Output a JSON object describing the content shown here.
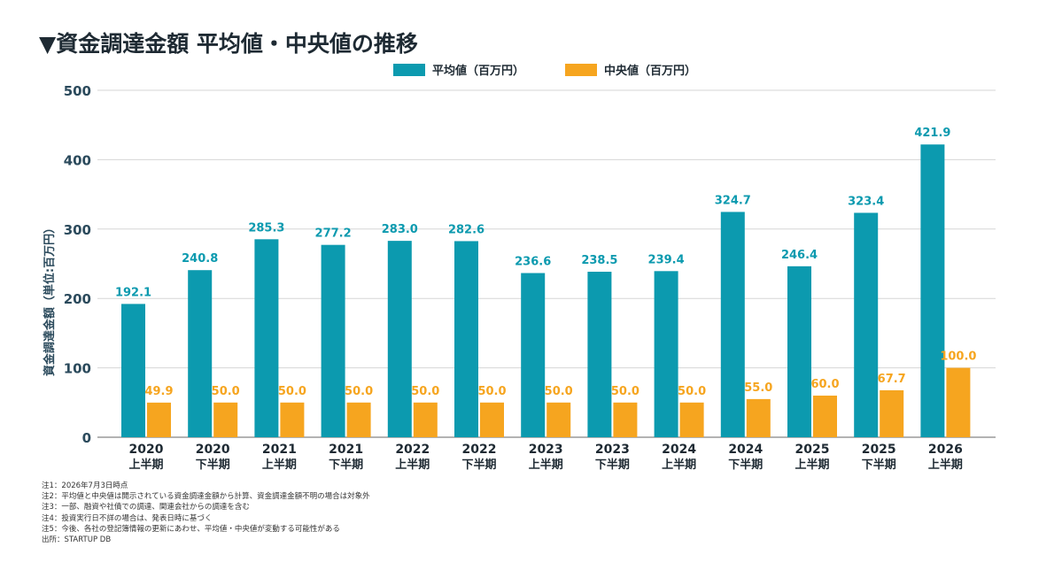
{
  "title": "▼資金調達金額 平均値・中央値の推移",
  "colors": {
    "mean": "#0c9aaf",
    "median": "#f6a51f",
    "axis_text": "#2b4a5c",
    "grid": "#d6d6d6"
  },
  "chart_data": {
    "type": "bar",
    "title": "",
    "ylabel": "資金調達金額（単位:百万円）",
    "ylim": [
      0,
      500
    ],
    "yticks": [
      "0",
      "100",
      "200",
      "300",
      "400",
      "500"
    ],
    "grid": true,
    "legend_position": "top-center",
    "categories": [
      {
        "year": "2020",
        "half": "上半期"
      },
      {
        "year": "2020",
        "half": "下半期"
      },
      {
        "year": "2021",
        "half": "上半期"
      },
      {
        "year": "2021",
        "half": "下半期"
      },
      {
        "year": "2022",
        "half": "上半期"
      },
      {
        "year": "2022",
        "half": "下半期"
      },
      {
        "year": "2023",
        "half": "上半期"
      },
      {
        "year": "2023",
        "half": "下半期"
      },
      {
        "year": "2024",
        "half": "上半期"
      },
      {
        "year": "2024",
        "half": "下半期"
      },
      {
        "year": "2025",
        "half": "上半期"
      },
      {
        "year": "2025",
        "half": "下半期"
      },
      {
        "year": "2026",
        "half": "上半期"
      }
    ],
    "series": [
      {
        "name": "平均値（百万円）",
        "color": "#0c9aaf",
        "values": [
          192.1,
          240.8,
          285.3,
          277.2,
          283.0,
          282.6,
          236.6,
          238.5,
          239.4,
          324.7,
          246.4,
          323.4,
          421.9
        ],
        "labels": [
          "192.1",
          "240.8",
          "285.3",
          "277.2",
          "283.0",
          "282.6",
          "236.6",
          "238.5",
          "239.4",
          "324.7",
          "246.4",
          "323.4",
          "421.9"
        ]
      },
      {
        "name": "中央値（百万円）",
        "color": "#f6a51f",
        "values": [
          49.9,
          50.0,
          50.0,
          50.0,
          50.0,
          50.0,
          50.0,
          50.0,
          50.0,
          55.0,
          60.0,
          67.7,
          100.0
        ],
        "labels": [
          "49.9",
          "50.0",
          "50.0",
          "50.0",
          "50.0",
          "50.0",
          "50.0",
          "50.0",
          "50.0",
          "55.0",
          "60.0",
          "67.7",
          "100.0"
        ]
      }
    ]
  },
  "notes": [
    "注1：2026年7月3日時点",
    "注2：平均値と中央値は開示されている資金調達金額から計算、資金調達金額不明の場合は対象外",
    "注3：一部、融資や社債での調達、関連会社からの調達を含む",
    "注4：投資実行日不詳の場合は、発表日時に基づく",
    "注5：今後、各社の登記簿情報の更新にあわせ、平均値・中央値が変動する可能性がある",
    "出所：STARTUP DB"
  ]
}
